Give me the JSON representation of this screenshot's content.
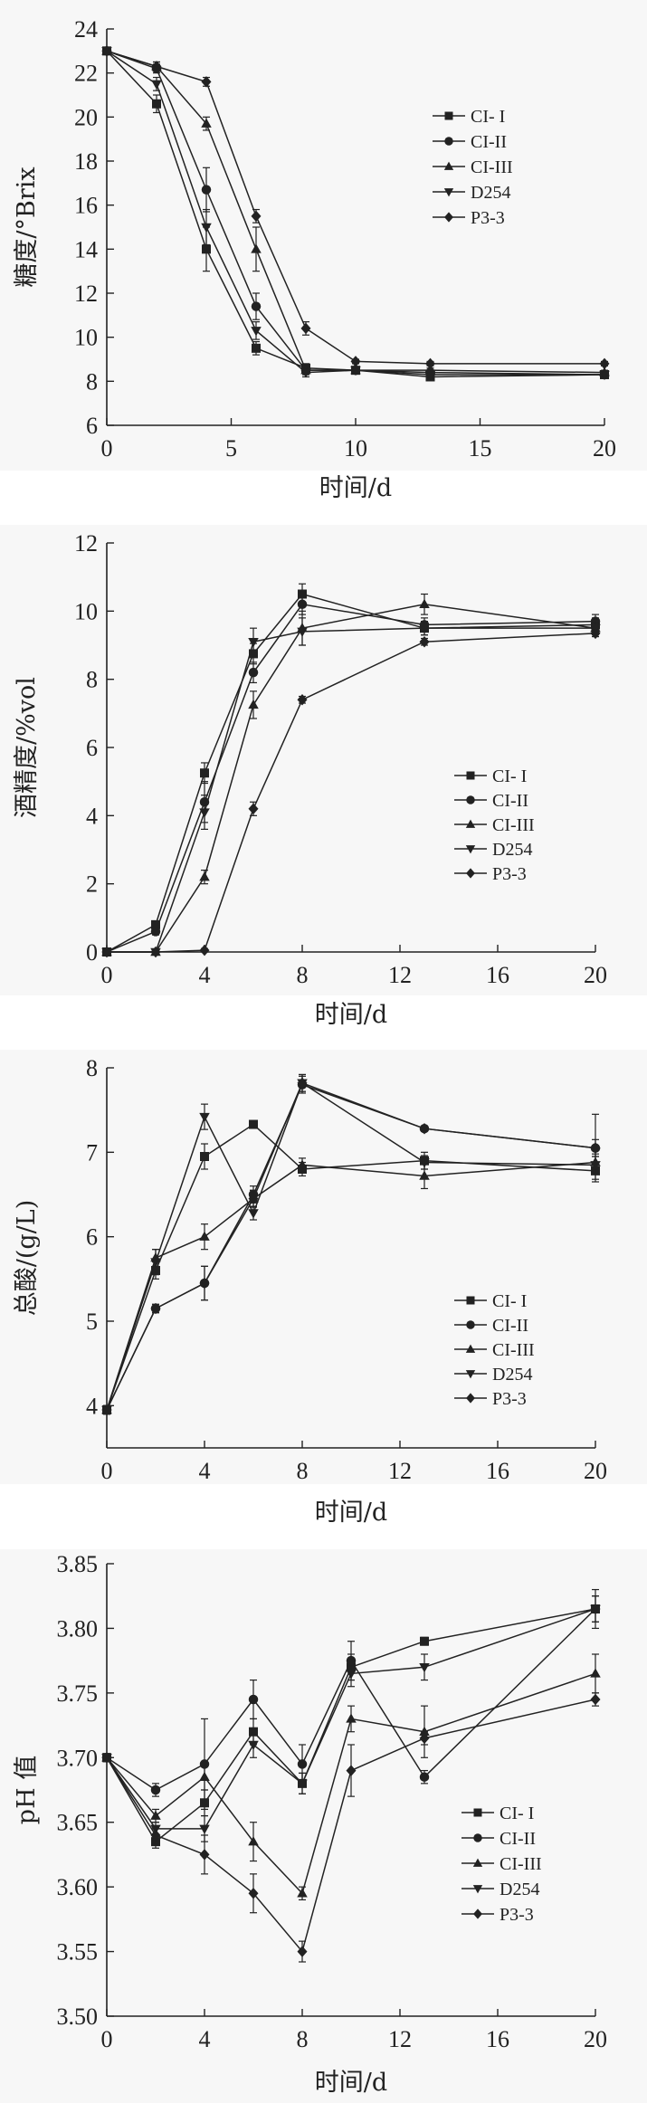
{
  "figure": {
    "colors": {
      "background": "#ffffff",
      "ink": "#222222",
      "panel_bg": "#f7f7f7"
    },
    "legend_labels": [
      "CI- I",
      "CI-II",
      "CI-III",
      "D254",
      "P3-3"
    ],
    "marker_shapes": [
      "square",
      "circle",
      "triangle-up",
      "triangle-down",
      "diamond"
    ]
  },
  "chart_data": [
    {
      "type": "line",
      "title": "",
      "xlabel": "时间/d",
      "ylabel": "糖度/°Brix",
      "xlim": [
        0,
        20
      ],
      "ylim": [
        6,
        24
      ],
      "xticks": [
        0,
        5,
        10,
        15,
        20
      ],
      "yticks": [
        6,
        8,
        10,
        12,
        14,
        16,
        18,
        20,
        22,
        24
      ],
      "legend": "right",
      "grid": false,
      "series": [
        {
          "name": "CI- I",
          "x": [
            0,
            2,
            4,
            6,
            8,
            10,
            13,
            20
          ],
          "y": [
            23.0,
            20.6,
            14.0,
            9.5,
            8.6,
            8.5,
            8.2,
            8.3
          ],
          "err": [
            0.1,
            0.4,
            1.0,
            0.3,
            0.2,
            0.1,
            0.1,
            0.1
          ]
        },
        {
          "name": "CI-II",
          "x": [
            0,
            2,
            4,
            6,
            8,
            10,
            13,
            20
          ],
          "y": [
            23.0,
            22.2,
            16.7,
            11.4,
            8.5,
            8.5,
            8.4,
            8.3
          ],
          "err": [
            0.1,
            0.2,
            1.0,
            0.6,
            0.2,
            0.1,
            0.1,
            0.1
          ]
        },
        {
          "name": "CI-III",
          "x": [
            0,
            2,
            4,
            6,
            8,
            10,
            13,
            20
          ],
          "y": [
            23.0,
            22.3,
            19.7,
            14.0,
            8.5,
            8.5,
            8.5,
            8.4
          ],
          "err": [
            0.1,
            0.2,
            0.3,
            1.0,
            0.2,
            0.1,
            0.1,
            0.1
          ]
        },
        {
          "name": "D254",
          "x": [
            0,
            2,
            4,
            6,
            8,
            10,
            13,
            20
          ],
          "y": [
            23.0,
            21.5,
            15.0,
            10.3,
            8.4,
            8.5,
            8.3,
            8.3
          ],
          "err": [
            0.1,
            0.3,
            0.8,
            0.4,
            0.2,
            0.1,
            0.1,
            0.1
          ]
        },
        {
          "name": "P3-3",
          "x": [
            0,
            2,
            4,
            6,
            8,
            10,
            13,
            20
          ],
          "y": [
            23.0,
            22.3,
            21.6,
            15.5,
            10.4,
            8.9,
            8.8,
            8.8
          ],
          "err": [
            0.1,
            0.2,
            0.2,
            0.3,
            0.3,
            0.1,
            0.1,
            0.1
          ]
        }
      ]
    },
    {
      "type": "line",
      "title": "",
      "xlabel": "时间/d",
      "ylabel": "酒精度/%vol",
      "xlim": [
        0,
        20
      ],
      "ylim": [
        0,
        12
      ],
      "xticks": [
        0,
        4,
        8,
        12,
        16,
        20
      ],
      "yticks": [
        0,
        2,
        4,
        6,
        8,
        10,
        12
      ],
      "legend": "right",
      "grid": false,
      "series": [
        {
          "name": "CI- I",
          "x": [
            0,
            2,
            4,
            6,
            8,
            13,
            20
          ],
          "y": [
            0.0,
            0.8,
            5.25,
            8.75,
            10.5,
            9.5,
            9.6
          ],
          "err": [
            0.05,
            0.1,
            0.3,
            0.3,
            0.3,
            0.2,
            0.2
          ]
        },
        {
          "name": "CI-II",
          "x": [
            0,
            2,
            4,
            6,
            8,
            13,
            20
          ],
          "y": [
            0.0,
            0.6,
            4.4,
            8.2,
            10.2,
            9.6,
            9.7
          ],
          "err": [
            0.05,
            0.1,
            0.6,
            0.3,
            0.3,
            0.2,
            0.2
          ]
        },
        {
          "name": "CI-III",
          "x": [
            0,
            2,
            4,
            6,
            8,
            13,
            20
          ],
          "y": [
            0.0,
            0.0,
            2.2,
            7.25,
            9.5,
            10.2,
            9.5
          ],
          "err": [
            0.05,
            0.05,
            0.2,
            0.4,
            0.5,
            0.3,
            0.2
          ]
        },
        {
          "name": "D254",
          "x": [
            0,
            2,
            4,
            6,
            8,
            13,
            20
          ],
          "y": [
            0.0,
            0.0,
            4.1,
            9.1,
            9.4,
            9.5,
            9.5
          ],
          "err": [
            0.05,
            0.05,
            0.5,
            0.4,
            0.4,
            0.2,
            0.2
          ]
        },
        {
          "name": "P3-3",
          "x": [
            0,
            2,
            4,
            6,
            8,
            13,
            20
          ],
          "y": [
            0.0,
            0.0,
            0.05,
            4.2,
            7.4,
            9.1,
            9.35
          ],
          "err": [
            0.05,
            0.05,
            0.05,
            0.2,
            0.1,
            0.1,
            0.1
          ]
        }
      ]
    },
    {
      "type": "line",
      "title": "",
      "xlabel": "时间/d",
      "ylabel": "总酸/(g/L)",
      "xlim": [
        0,
        20
      ],
      "ylim": [
        3.5,
        8
      ],
      "xticks": [
        0,
        4,
        8,
        12,
        16,
        20
      ],
      "yticks": [
        4,
        5,
        6,
        7,
        8
      ],
      "legend": "right",
      "grid": false,
      "series": [
        {
          "name": "CI- I",
          "x": [
            0,
            2,
            4,
            6,
            8,
            13,
            20
          ],
          "y": [
            3.95,
            5.6,
            6.95,
            7.33,
            6.8,
            6.9,
            6.78
          ],
          "err": [
            0.05,
            0.1,
            0.15,
            0.03,
            0.08,
            0.1,
            0.1
          ]
        },
        {
          "name": "CI-II",
          "x": [
            0,
            2,
            4,
            6,
            8,
            13,
            20
          ],
          "y": [
            3.95,
            5.15,
            5.45,
            6.5,
            7.8,
            7.28,
            7.05
          ],
          "err": [
            0.05,
            0.05,
            0.2,
            0.1,
            0.1,
            0.03,
            0.4
          ]
        },
        {
          "name": "CI-III",
          "x": [
            0,
            2,
            4,
            6,
            8,
            13,
            20
          ],
          "y": [
            3.95,
            5.75,
            6.0,
            6.45,
            6.85,
            6.72,
            6.88
          ],
          "err": [
            0.05,
            0.1,
            0.15,
            0.1,
            0.08,
            0.15,
            0.1
          ]
        },
        {
          "name": "D254",
          "x": [
            0,
            2,
            4,
            6,
            8,
            13,
            20
          ],
          "y": [
            3.95,
            5.7,
            7.42,
            6.28,
            7.82,
            6.88,
            6.85
          ],
          "err": [
            0.05,
            0.15,
            0.15,
            0.08,
            0.1,
            0.08,
            0.1
          ]
        },
        {
          "name": "P3-3",
          "x": [
            0,
            2,
            4,
            6,
            8,
            13,
            20
          ],
          "y": [
            3.95,
            5.15,
            5.45,
            6.45,
            7.82,
            7.28,
            7.05
          ],
          "err": [
            0.05,
            0.05,
            0.2,
            0.1,
            0.1,
            0.03,
            0.1
          ]
        }
      ]
    },
    {
      "type": "line",
      "title": "",
      "xlabel": "时间/d",
      "ylabel": "pH 值",
      "xlim": [
        0,
        20
      ],
      "ylim": [
        3.5,
        3.85
      ],
      "xticks": [
        0,
        4,
        8,
        12,
        16,
        20
      ],
      "yticks": [
        3.5,
        3.55,
        3.6,
        3.65,
        3.7,
        3.75,
        3.8,
        3.85
      ],
      "legend": "right",
      "grid": false,
      "series": [
        {
          "name": "CI- I",
          "x": [
            0,
            2,
            4,
            6,
            8,
            10,
            13,
            20
          ],
          "y": [
            3.7,
            3.635,
            3.665,
            3.72,
            3.68,
            3.77,
            3.79,
            3.815
          ],
          "err": [
            0.003,
            0.005,
            0.01,
            0.01,
            0.008,
            0.01,
            0.003,
            0.01
          ]
        },
        {
          "name": "CI-II",
          "x": [
            0,
            2,
            4,
            6,
            8,
            10,
            13,
            20
          ],
          "y": [
            3.7,
            3.675,
            3.695,
            3.745,
            3.695,
            3.775,
            3.685,
            3.815
          ],
          "err": [
            0.003,
            0.005,
            0.035,
            0.015,
            0.015,
            0.015,
            0.005,
            0.015
          ]
        },
        {
          "name": "CI-III",
          "x": [
            0,
            2,
            4,
            6,
            8,
            10,
            13,
            20
          ],
          "y": [
            3.7,
            3.655,
            3.685,
            3.635,
            3.595,
            3.73,
            3.72,
            3.765
          ],
          "err": [
            0.003,
            0.005,
            0.01,
            0.015,
            0.005,
            0.01,
            0.02,
            0.015
          ]
        },
        {
          "name": "D254",
          "x": [
            0,
            2,
            4,
            6,
            8,
            10,
            13,
            20
          ],
          "y": [
            3.7,
            3.645,
            3.645,
            3.71,
            3.68,
            3.765,
            3.77,
            3.815
          ],
          "err": [
            0.003,
            0.005,
            0.01,
            0.01,
            0.008,
            0.01,
            0.01,
            0.01
          ]
        },
        {
          "name": "P3-3",
          "x": [
            0,
            2,
            4,
            6,
            8,
            10,
            13,
            20
          ],
          "y": [
            3.7,
            3.64,
            3.625,
            3.595,
            3.55,
            3.69,
            3.715,
            3.745
          ],
          "err": [
            0.003,
            0.005,
            0.015,
            0.015,
            0.008,
            0.02,
            0.005,
            0.005
          ]
        }
      ]
    }
  ]
}
